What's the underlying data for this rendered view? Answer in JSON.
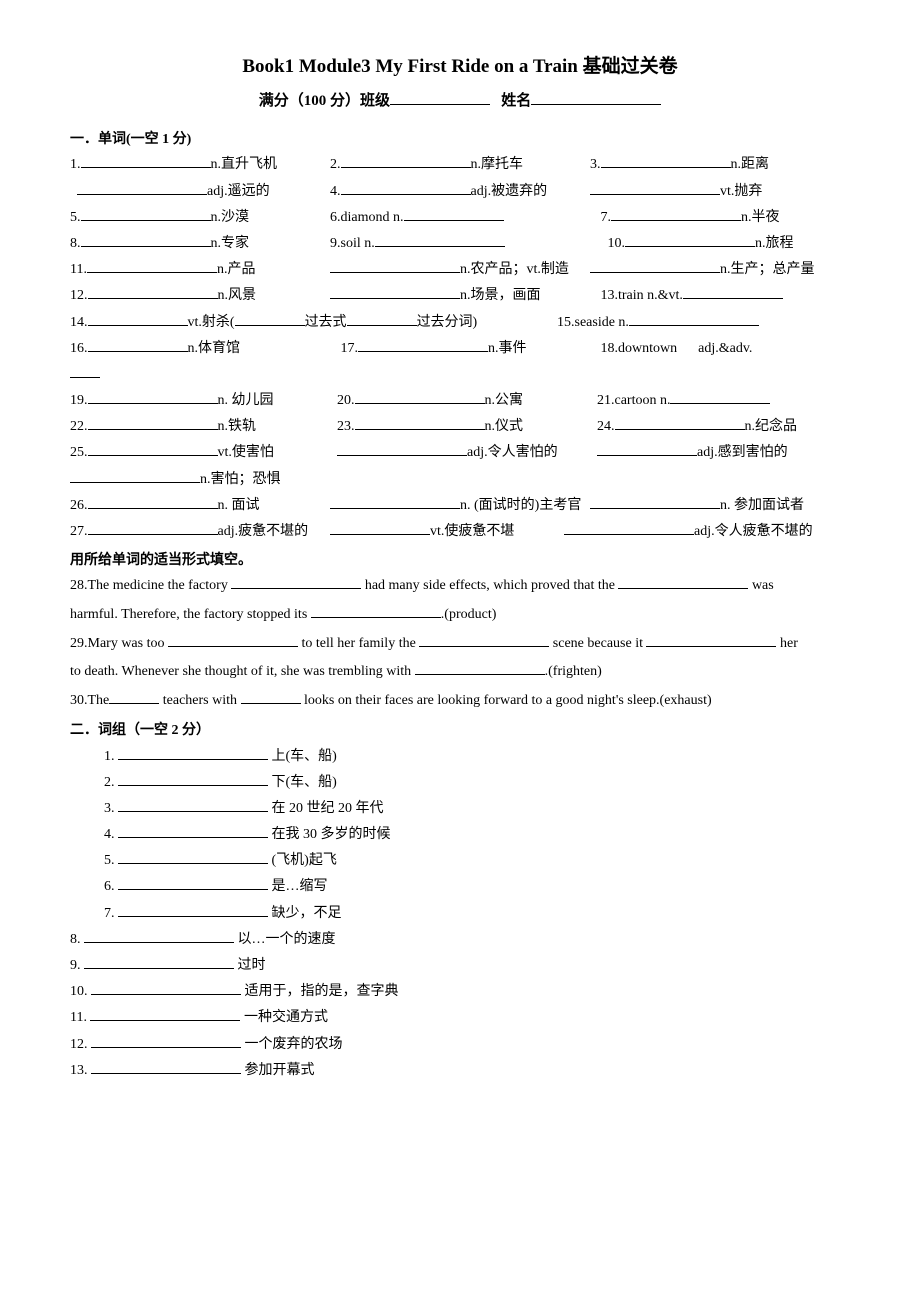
{
  "title": "Book1 Module3    My First Ride on a Train  基础过关卷",
  "subtitle_score": "满分（100 分）班级",
  "subtitle_name": "姓名",
  "section1": {
    "heading": "一．单词(一空 1 分)",
    "items": {
      "i1": "n.直升飞机",
      "i2": "n.摩托车",
      "i3": "n.距离",
      "i1b": "adj.遥远的",
      "i4": "adj.被遗弃的",
      "i4b": "vt.抛弃",
      "i5": "n.沙漠",
      "i6": "6.diamond n.",
      "i7": "n.半夜",
      "i8": "n.专家",
      "i9": "9.soil n.",
      "i10": "n.旅程",
      "i11": "n.产品",
      "i11b": "n.农产品；vt.制造",
      "i11c": "n.生产；总产量",
      "i12": "n.风景",
      "i12b": "n.场景，画面",
      "i13": "13.train n.&vt.",
      "i14": "vt.射杀(",
      "i14b": "过去式",
      "i14c": "过去分词)",
      "i15": "15.seaside n.",
      "i16": "n.体育馆",
      "i17": "n.事件",
      "i18": "18.downtown",
      "i18b": "adj.&adv.",
      "i19": "n. 幼儿园",
      "i20": "n.公寓",
      "i21": "21.cartoon n.",
      "i22": "n.铁轨",
      "i23": "n.仪式",
      "i24": "n.纪念品",
      "i25": "vt.使害怕",
      "i25b": "adj.令人害怕的",
      "i25c": "adj.感到害怕的",
      "i25d": "n.害怕；恐惧",
      "i26": "n. 面试",
      "i26b": "n. (面试时的)主考官",
      "i26c": "n. 参加面试者",
      "i27": "adj.疲惫不堪的",
      "i27b": "vt.使疲惫不堪",
      "i27c": "adj.令人疲惫不堪的"
    },
    "fill_heading": "用所给单词的适当形式填空。",
    "fill28a": "28.The medicine the factory",
    "fill28b": "had many side effects, which proved that the",
    "fill28c": "was",
    "fill28d": "harmful. Therefore, the factory stopped its",
    "fill28e": ".(product)",
    "fill29a": "29.Mary was too",
    "fill29b": "to tell her family the",
    "fill29c": "scene because it",
    "fill29d": "her",
    "fill29e": "to death. Whenever she thought of it, she was trembling with",
    "fill29f": ".(frighten)",
    "fill30a": "30.The",
    "fill30b": "teachers with",
    "fill30c": "looks on their faces are looking forward to a good night's sleep.(exhaust)"
  },
  "section2": {
    "heading": "二．词组（一空 2 分）",
    "items": [
      {
        "n": "1.",
        "txt": "上(车、船)"
      },
      {
        "n": "2.",
        "txt": "下(车、船)"
      },
      {
        "n": "3.",
        "txt": "在 20 世纪 20 年代"
      },
      {
        "n": "4.",
        "txt": "在我 30 多岁的时候"
      },
      {
        "n": "5.",
        "txt": "(飞机)起飞"
      },
      {
        "n": "6.",
        "txt": "是…缩写"
      },
      {
        "n": "7.",
        "txt": "缺少，不足"
      },
      {
        "n": "8.",
        "txt": "以…一个的速度"
      },
      {
        "n": "9.",
        "txt": "过时"
      },
      {
        "n": "10.",
        "txt": "适用于，指的是，查字典"
      },
      {
        "n": "11.",
        "txt": "一种交通方式"
      },
      {
        "n": "12.",
        "txt": "一个废弃的农场"
      },
      {
        "n": "13.",
        "txt": "参加开幕式"
      }
    ]
  }
}
